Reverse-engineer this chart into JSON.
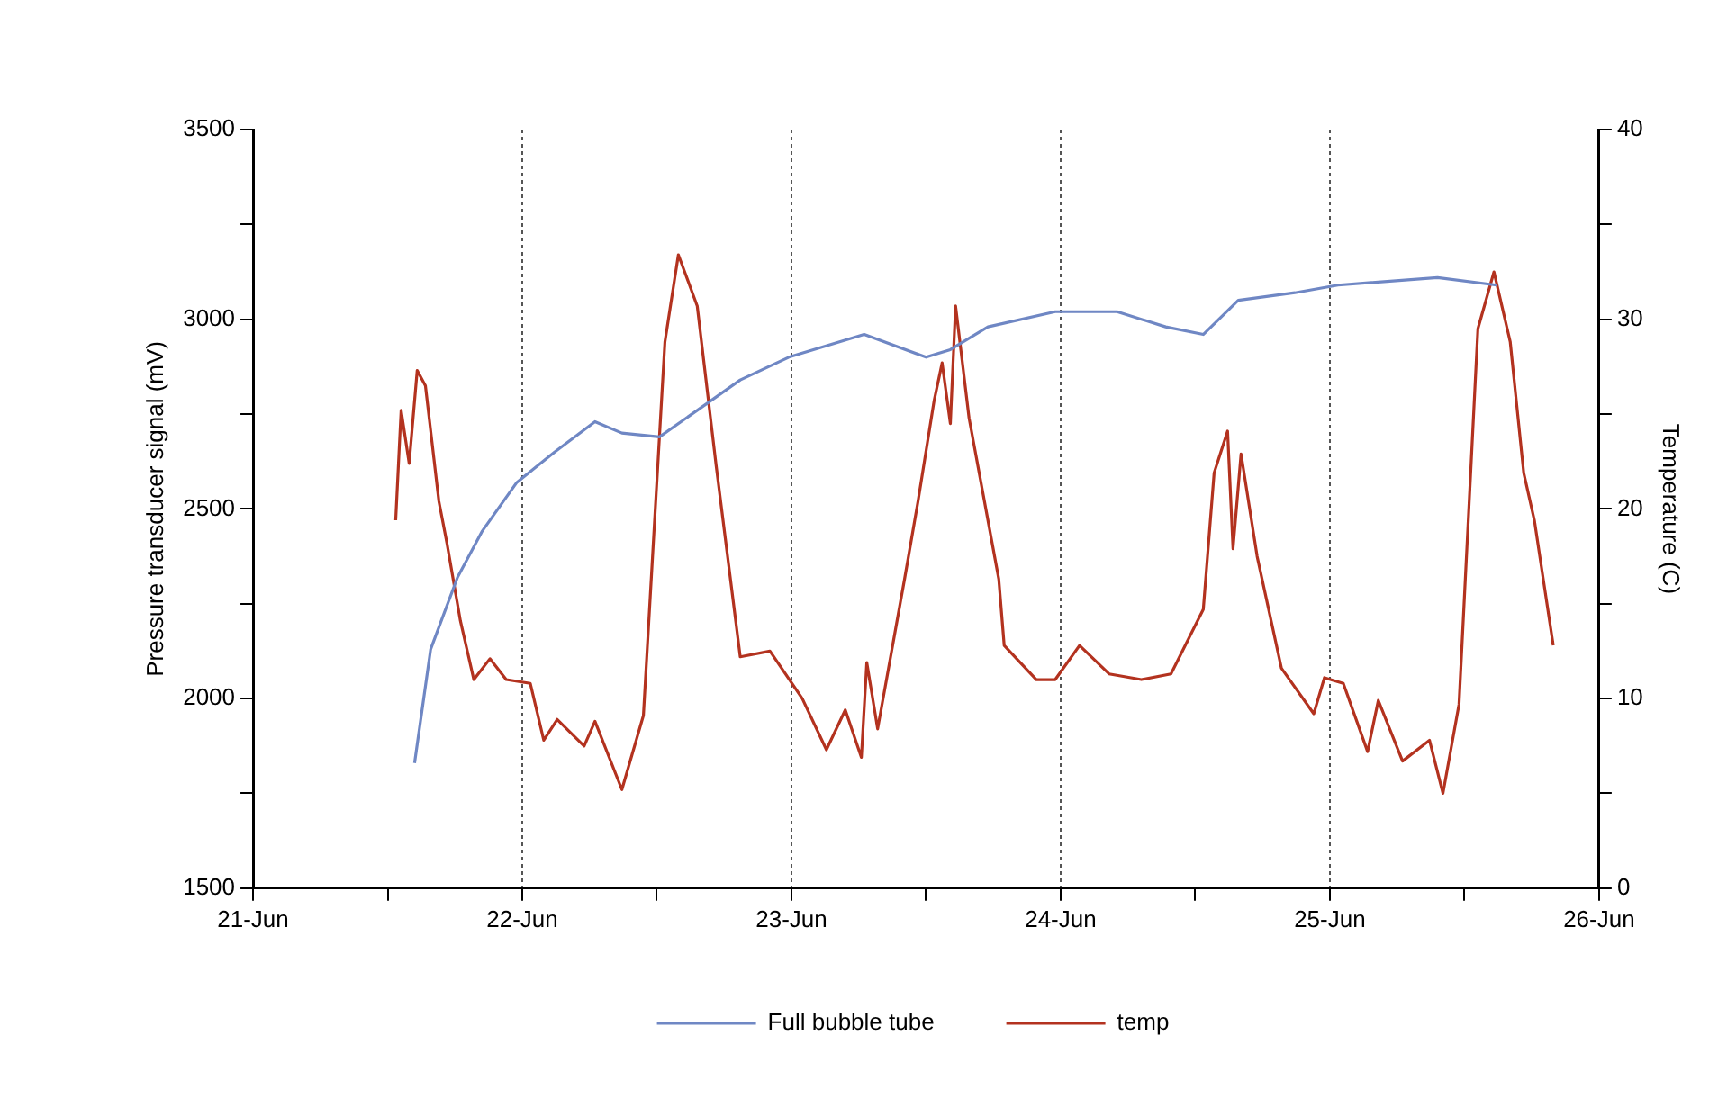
{
  "chart_data": {
    "type": "line",
    "ylabel": "Pressure transducer signal (mV)",
    "y2label": "Temperature (C)",
    "xlim": [
      "--06-21",
      "--06-26"
    ],
    "xticks": [
      {
        "value": "--06-21",
        "label": "21-Jun"
      },
      {
        "value": "--06-21T12:00",
        "label": null
      },
      {
        "value": "--06-22",
        "label": "22-Jun"
      },
      {
        "value": "--06-22T12:00",
        "label": null
      },
      {
        "value": "--06-23",
        "label": "23-Jun"
      },
      {
        "value": "--06-23T12:00",
        "label": null
      },
      {
        "value": "--06-24",
        "label": "24-Jun"
      },
      {
        "value": "--06-24T12:00",
        "label": null
      },
      {
        "value": "--06-25",
        "label": "25-Jun"
      },
      {
        "value": "--06-25T12:00",
        "label": null
      },
      {
        "value": "--06-26",
        "label": "26-Jun"
      }
    ],
    "ylim": [
      1500,
      3500
    ],
    "yticks": [
      1500,
      {
        "value": 1750,
        "label": null
      },
      2000,
      {
        "value": 2250,
        "label": null
      },
      2500,
      {
        "value": 2750,
        "label": null
      },
      3000,
      {
        "value": 3250,
        "label": null
      },
      3500
    ],
    "y2lim": [
      0,
      40
    ],
    "y2ticks": [
      0,
      {
        "value": 5,
        "label": null
      },
      10,
      {
        "value": 15,
        "label": null
      },
      20,
      {
        "value": 25,
        "label": null
      },
      30,
      {
        "value": 35,
        "label": null
      },
      40
    ],
    "grid": "x",
    "legend": "bottom",
    "marker": "none",
    "line_style": "solid",
    "series": [
      {
        "name": "Full bubble tube",
        "color": "#6f87c4",
        "x": [
          "--06-21T14:24",
          "--06-21T15:50",
          "--06-21T18:14",
          "--06-21T20:24",
          "--06-21T23:31",
          "--06-22T02:53",
          "--06-22T06:29",
          "--06-22T08:53",
          "--06-22T12:14",
          "--06-22T15:36",
          "--06-22T19:26",
          "--06-22T23:46",
          "--06-23T06:29",
          "--06-23T12:00",
          "--06-23T14:10",
          "--06-23T17:31",
          "--06-23T23:31",
          "--06-24T05:02",
          "--06-24T09:22",
          "--06-24T12:43",
          "--06-24T15:50",
          "--06-24T20:53",
          "--06-25T00:43",
          "--06-25T09:36",
          "--06-25T14:53"
        ],
        "values": [
          1830,
          2130,
          2320,
          2440,
          2570,
          2650,
          2730,
          2700,
          2690,
          2760,
          2840,
          2900,
          2960,
          2900,
          2920,
          2980,
          3020,
          3020,
          2980,
          2960,
          3050,
          3070,
          3090,
          3110,
          3090
        ]
      },
      {
        "name": "temp",
        "color": "#b3321f",
        "axis": "y2",
        "x": [
          "--06-21T12:43",
          "--06-21T13:12",
          "--06-21T13:55",
          "--06-21T14:38",
          "--06-21T15:22",
          "--06-21T16:34",
          "--06-21T17:17",
          "--06-21T18:29",
          "--06-21T19:41",
          "--06-21T21:07",
          "--06-21T22:34",
          "--06-22T00:43",
          "--06-22T01:55",
          "--06-22T03:07",
          "--06-22T05:31",
          "--06-22T06:29",
          "--06-22T08:53",
          "--06-22T10:48",
          "--06-22T12:43",
          "--06-22T13:55",
          "--06-22T15:36",
          "--06-22T17:17",
          "--06-22T19:26",
          "--06-22T22:05",
          "--06-23T00:58",
          "--06-23T03:07",
          "--06-23T04:48",
          "--06-23T06:14",
          "--06-23T06:43",
          "--06-23T07:41",
          "--06-23T10:05",
          "--06-23T11:17",
          "--06-23T12:43",
          "--06-23T13:26",
          "--06-23T14:10",
          "--06-23T14:38",
          "--06-23T15:50",
          "--06-23T18:29",
          "--06-23T18:58",
          "--06-23T21:50",
          "--06-23T23:31",
          "--06-24T01:41",
          "--06-24T04:19",
          "--06-24T07:12",
          "--06-24T09:50",
          "--06-24T12:43",
          "--06-24T13:41",
          "--06-24T14:53",
          "--06-24T15:22",
          "--06-24T16:05",
          "--06-24T17:31",
          "--06-24T19:41",
          "--06-24T22:34",
          "--06-24T23:31",
          "--06-25T01:12",
          "--06-25T03:22",
          "--06-25T04:19",
          "--06-25T06:29",
          "--06-25T08:53",
          "--06-25T10:05",
          "--06-25T11:31",
          "--06-25T13:12",
          "--06-25T14:38",
          "--06-25T16:05",
          "--06-25T17:17",
          "--06-25T18:14",
          "--06-25T19:55"
        ],
        "values": [
          19.4,
          25.2,
          22.4,
          27.3,
          26.5,
          20.4,
          18.2,
          14.1,
          11.0,
          12.1,
          11.0,
          10.8,
          7.8,
          8.9,
          7.5,
          8.8,
          5.2,
          9.1,
          28.8,
          33.4,
          30.7,
          22.3,
          12.2,
          12.5,
          10.0,
          7.3,
          9.4,
          6.9,
          11.9,
          8.4,
          16.3,
          20.4,
          25.7,
          27.7,
          24.5,
          30.7,
          24.8,
          16.3,
          12.8,
          11.0,
          11.0,
          12.8,
          11.3,
          11.0,
          11.3,
          14.7,
          21.9,
          24.1,
          17.9,
          22.9,
          17.5,
          11.6,
          9.2,
          11.1,
          10.8,
          7.2,
          9.9,
          6.7,
          7.8,
          5.0,
          9.7,
          29.5,
          32.5,
          28.8,
          21.9,
          19.4,
          12.8
        ]
      }
    ]
  }
}
